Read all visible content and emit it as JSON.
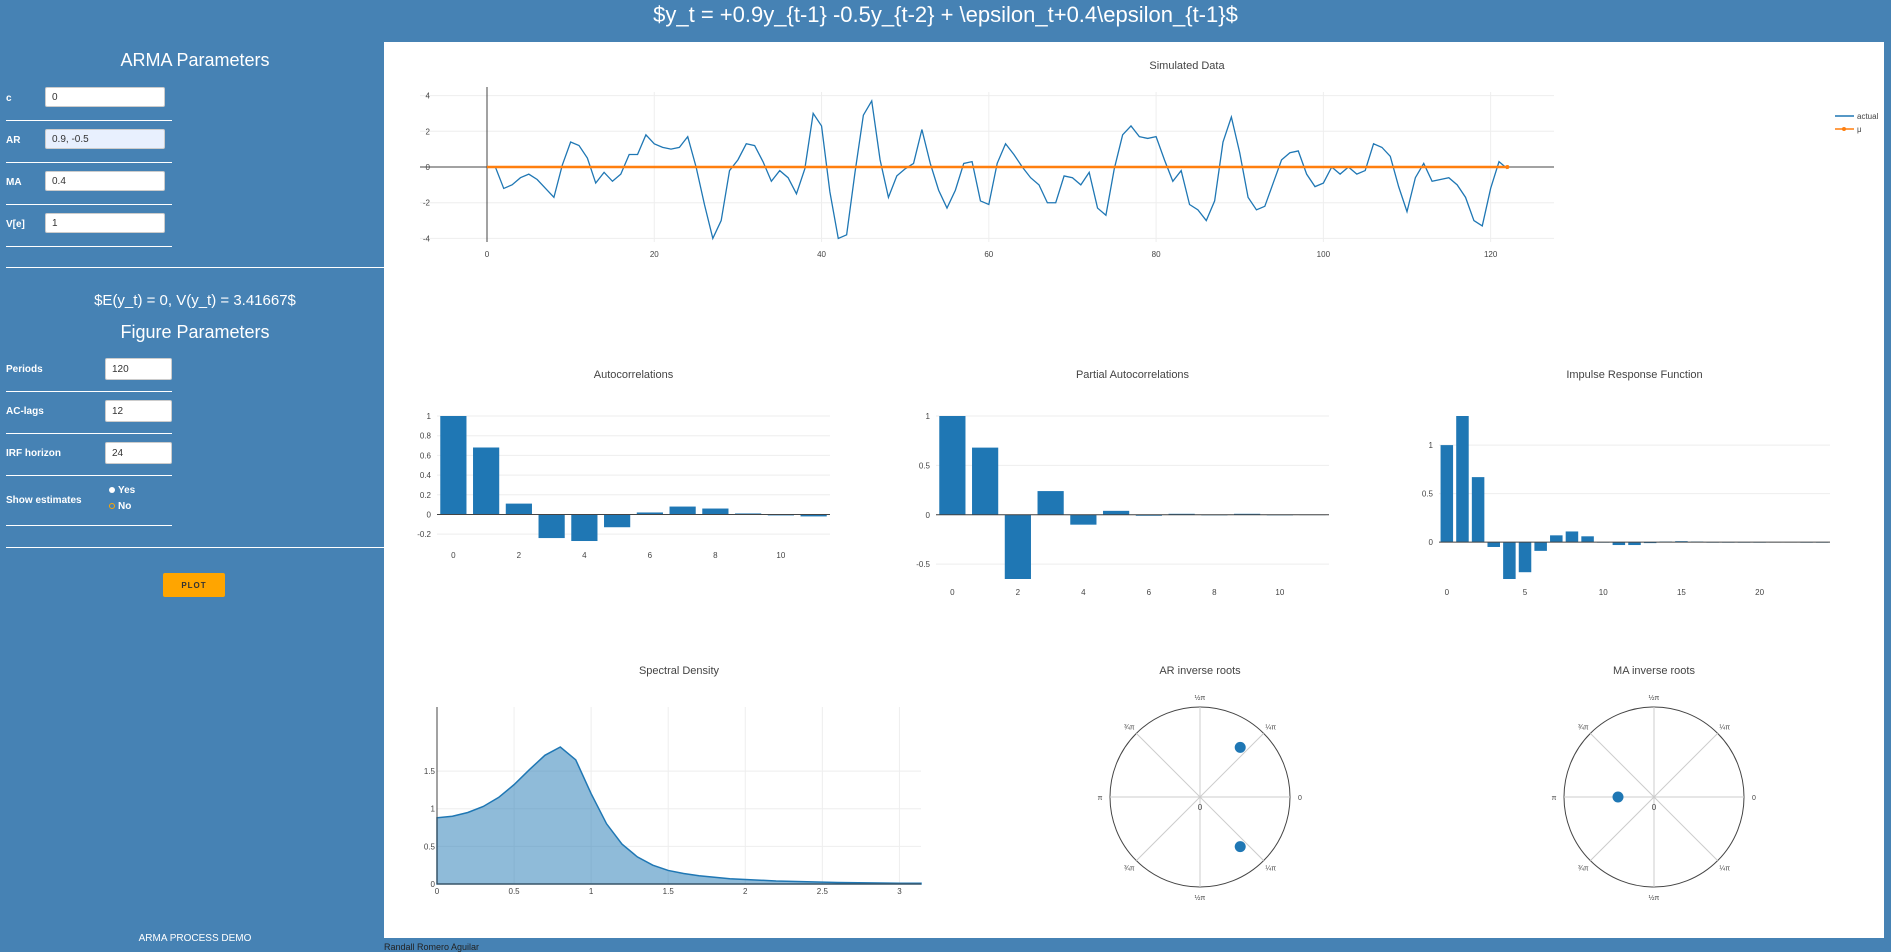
{
  "header": {
    "title": "$y_t = +0.9y_{t-1} -0.5y_{t-2} + \\epsilon_t+0.4\\epsilon_{t-1}$"
  },
  "sidebar": {
    "arma_heading": "ARMA Parameters",
    "params": [
      {
        "label": "c",
        "value": "0"
      },
      {
        "label": "AR",
        "value": "0.9, -0.5"
      },
      {
        "label": "MA",
        "value": "0.4"
      },
      {
        "label": "V[e]",
        "value": "1"
      }
    ],
    "moments": "$E(y_t) = 0, V(y_t) = 3.41667$",
    "figure_heading": "Figure Parameters",
    "figure_params": [
      {
        "label": "Periods",
        "value": "120"
      },
      {
        "label": "AC-lags",
        "value": "12"
      },
      {
        "label": "IRF horizon",
        "value": "24"
      }
    ],
    "show_estimates_label": "Show estimates",
    "show_estimates_options": [
      "Yes",
      "No"
    ],
    "show_estimates_selected": "Yes",
    "plot_button": "PLOT",
    "footer": "ARMA PROCESS DEMO"
  },
  "footer_author": "Randall Romero Aguilar",
  "colors": {
    "accent": "#4682b4",
    "series": "#1f77b4",
    "mean": "#ff7f0e",
    "button": "#ffa500"
  },
  "chart_data": [
    {
      "type": "line",
      "title": "Simulated Data",
      "x_ticks": [
        0,
        20,
        40,
        60,
        80,
        100,
        120
      ],
      "y_ticks": [
        -4,
        -2,
        0,
        2,
        4
      ],
      "xlim": [
        0,
        121
      ],
      "ylim": [
        -4.2,
        4.2
      ],
      "legend": [
        "actual",
        "μ"
      ],
      "legend_placement": "top-right",
      "series": [
        {
          "name": "actual",
          "values": [
            0.0,
            0.0,
            -1.2,
            -1.0,
            -0.6,
            -0.4,
            -0.7,
            -1.2,
            -1.7,
            0.1,
            1.4,
            1.2,
            0.5,
            -0.9,
            -0.3,
            -0.8,
            -0.4,
            0.7,
            0.7,
            1.8,
            1.3,
            1.1,
            1.0,
            1.1,
            1.7,
            0.0,
            -2.1,
            -4.0,
            -3.0,
            -0.2,
            0.4,
            1.3,
            1.2,
            0.3,
            -0.8,
            -0.2,
            -0.6,
            -1.5,
            -0.1,
            3.0,
            2.3,
            -1.4,
            -4.0,
            -3.8,
            -0.3,
            2.9,
            3.7,
            0.4,
            -1.7,
            -0.5,
            -0.1,
            0.2,
            2.1,
            0.2,
            -1.3,
            -2.3,
            -1.3,
            0.2,
            0.3,
            -1.9,
            -2.1,
            0.2,
            1.3,
            0.7,
            0.0,
            -0.6,
            -1.0,
            -2.0,
            -2.0,
            -0.5,
            -0.6,
            -1.0,
            -0.3,
            -2.3,
            -2.7,
            -0.1,
            1.8,
            2.3,
            1.7,
            1.6,
            1.7,
            0.4,
            -0.8,
            -0.2,
            -2.1,
            -2.4,
            -3.0,
            -1.9,
            1.4,
            2.8,
            0.8,
            -1.7,
            -2.4,
            -2.2,
            -0.9,
            0.4,
            0.8,
            0.9,
            -0.4,
            -1.1,
            -0.9,
            0.0,
            -0.4,
            0.0,
            -0.4,
            -0.2,
            1.3,
            1.1,
            0.6,
            -1.1,
            -2.5,
            -0.6,
            0.2,
            -0.8,
            -0.7,
            -0.6,
            -1.0,
            -1.7,
            -3.0,
            -3.3,
            -1.2,
            0.3,
            -0.1
          ]
        },
        {
          "name": "μ",
          "values": [
            0,
            0
          ]
        }
      ]
    },
    {
      "type": "bar",
      "title": "Autocorrelations",
      "x": [
        0,
        1,
        2,
        3,
        4,
        5,
        6,
        7,
        8,
        9,
        10,
        11
      ],
      "values": [
        1.0,
        0.68,
        0.11,
        -0.24,
        -0.27,
        -0.13,
        0.02,
        0.08,
        0.06,
        0.01,
        -0.01,
        -0.02
      ],
      "x_ticks": [
        0,
        2,
        4,
        6,
        8,
        10
      ],
      "y_ticks": [
        -0.2,
        0,
        0.2,
        0.4,
        0.6,
        0.8,
        1
      ],
      "ylim": [
        -0.28,
        1.0
      ]
    },
    {
      "type": "bar",
      "title": "Partial Autocorrelations",
      "x": [
        0,
        1,
        2,
        3,
        4,
        5,
        6,
        7,
        8,
        9,
        10,
        11
      ],
      "values": [
        1.0,
        0.68,
        -0.65,
        0.24,
        -0.1,
        0.04,
        -0.01,
        0.01,
        -0.005,
        0.01,
        -0.003,
        0.002
      ],
      "x_ticks": [
        0,
        2,
        4,
        6,
        8,
        10
      ],
      "y_ticks": [
        -0.5,
        0,
        0.5,
        1
      ],
      "ylim": [
        -0.65,
        1.0
      ]
    },
    {
      "type": "bar",
      "title": "Impulse Response Function",
      "x": [
        0,
        1,
        2,
        3,
        4,
        5,
        6,
        7,
        8,
        9,
        10,
        11,
        12,
        13,
        14,
        15,
        16,
        17,
        18,
        19,
        20,
        21,
        22,
        23,
        24
      ],
      "values": [
        1.0,
        1.3,
        0.67,
        -0.05,
        -0.38,
        -0.31,
        -0.09,
        0.07,
        0.11,
        0.06,
        -0.004,
        -0.03,
        -0.03,
        -0.01,
        0.006,
        0.01,
        0.006,
        0.0,
        -0.003,
        -0.003,
        -0.001,
        0.001,
        0.001,
        0.0,
        0.0
      ],
      "x_ticks": [
        0,
        5,
        10,
        15,
        20
      ],
      "y_ticks": [
        0,
        0.5,
        1
      ],
      "ylim": [
        -0.38,
        1.3
      ]
    },
    {
      "type": "area",
      "title": "Spectral Density",
      "x": [
        0,
        0.1,
        0.2,
        0.3,
        0.4,
        0.5,
        0.6,
        0.7,
        0.8,
        0.9,
        1.0,
        1.1,
        1.2,
        1.3,
        1.4,
        1.5,
        1.6,
        1.7,
        1.8,
        1.9,
        2.0,
        2.2,
        2.4,
        2.6,
        2.8,
        3.0,
        3.14
      ],
      "values": [
        0.88,
        0.9,
        0.95,
        1.03,
        1.15,
        1.32,
        1.52,
        1.71,
        1.82,
        1.65,
        1.2,
        0.8,
        0.53,
        0.36,
        0.25,
        0.18,
        0.14,
        0.11,
        0.09,
        0.07,
        0.06,
        0.04,
        0.03,
        0.02,
        0.015,
        0.01,
        0.01
      ],
      "x_ticks": [
        0,
        0.5,
        1,
        1.5,
        2,
        2.5,
        3
      ],
      "y_ticks": [
        0,
        0.5,
        1,
        1.5
      ],
      "xlim": [
        0,
        3.14
      ],
      "ylim": [
        0,
        1.82
      ]
    },
    {
      "type": "scatter",
      "title": "AR inverse roots",
      "points": [
        {
          "r": 0.71,
          "theta_deg": 51
        },
        {
          "r": 0.71,
          "theta_deg": -51
        }
      ],
      "angle_ticks": [
        "0",
        "¼π",
        "½π",
        "¾π",
        "π",
        "¾π",
        "½π",
        "¼π"
      ],
      "radial_label": "0"
    },
    {
      "type": "scatter",
      "title": "MA inverse roots",
      "points": [
        {
          "r": 0.4,
          "theta_deg": 180
        }
      ],
      "angle_ticks": [
        "0",
        "¼π",
        "½π",
        "¾π",
        "π",
        "¾π",
        "½π",
        "¼π"
      ],
      "radial_label": "0"
    }
  ]
}
